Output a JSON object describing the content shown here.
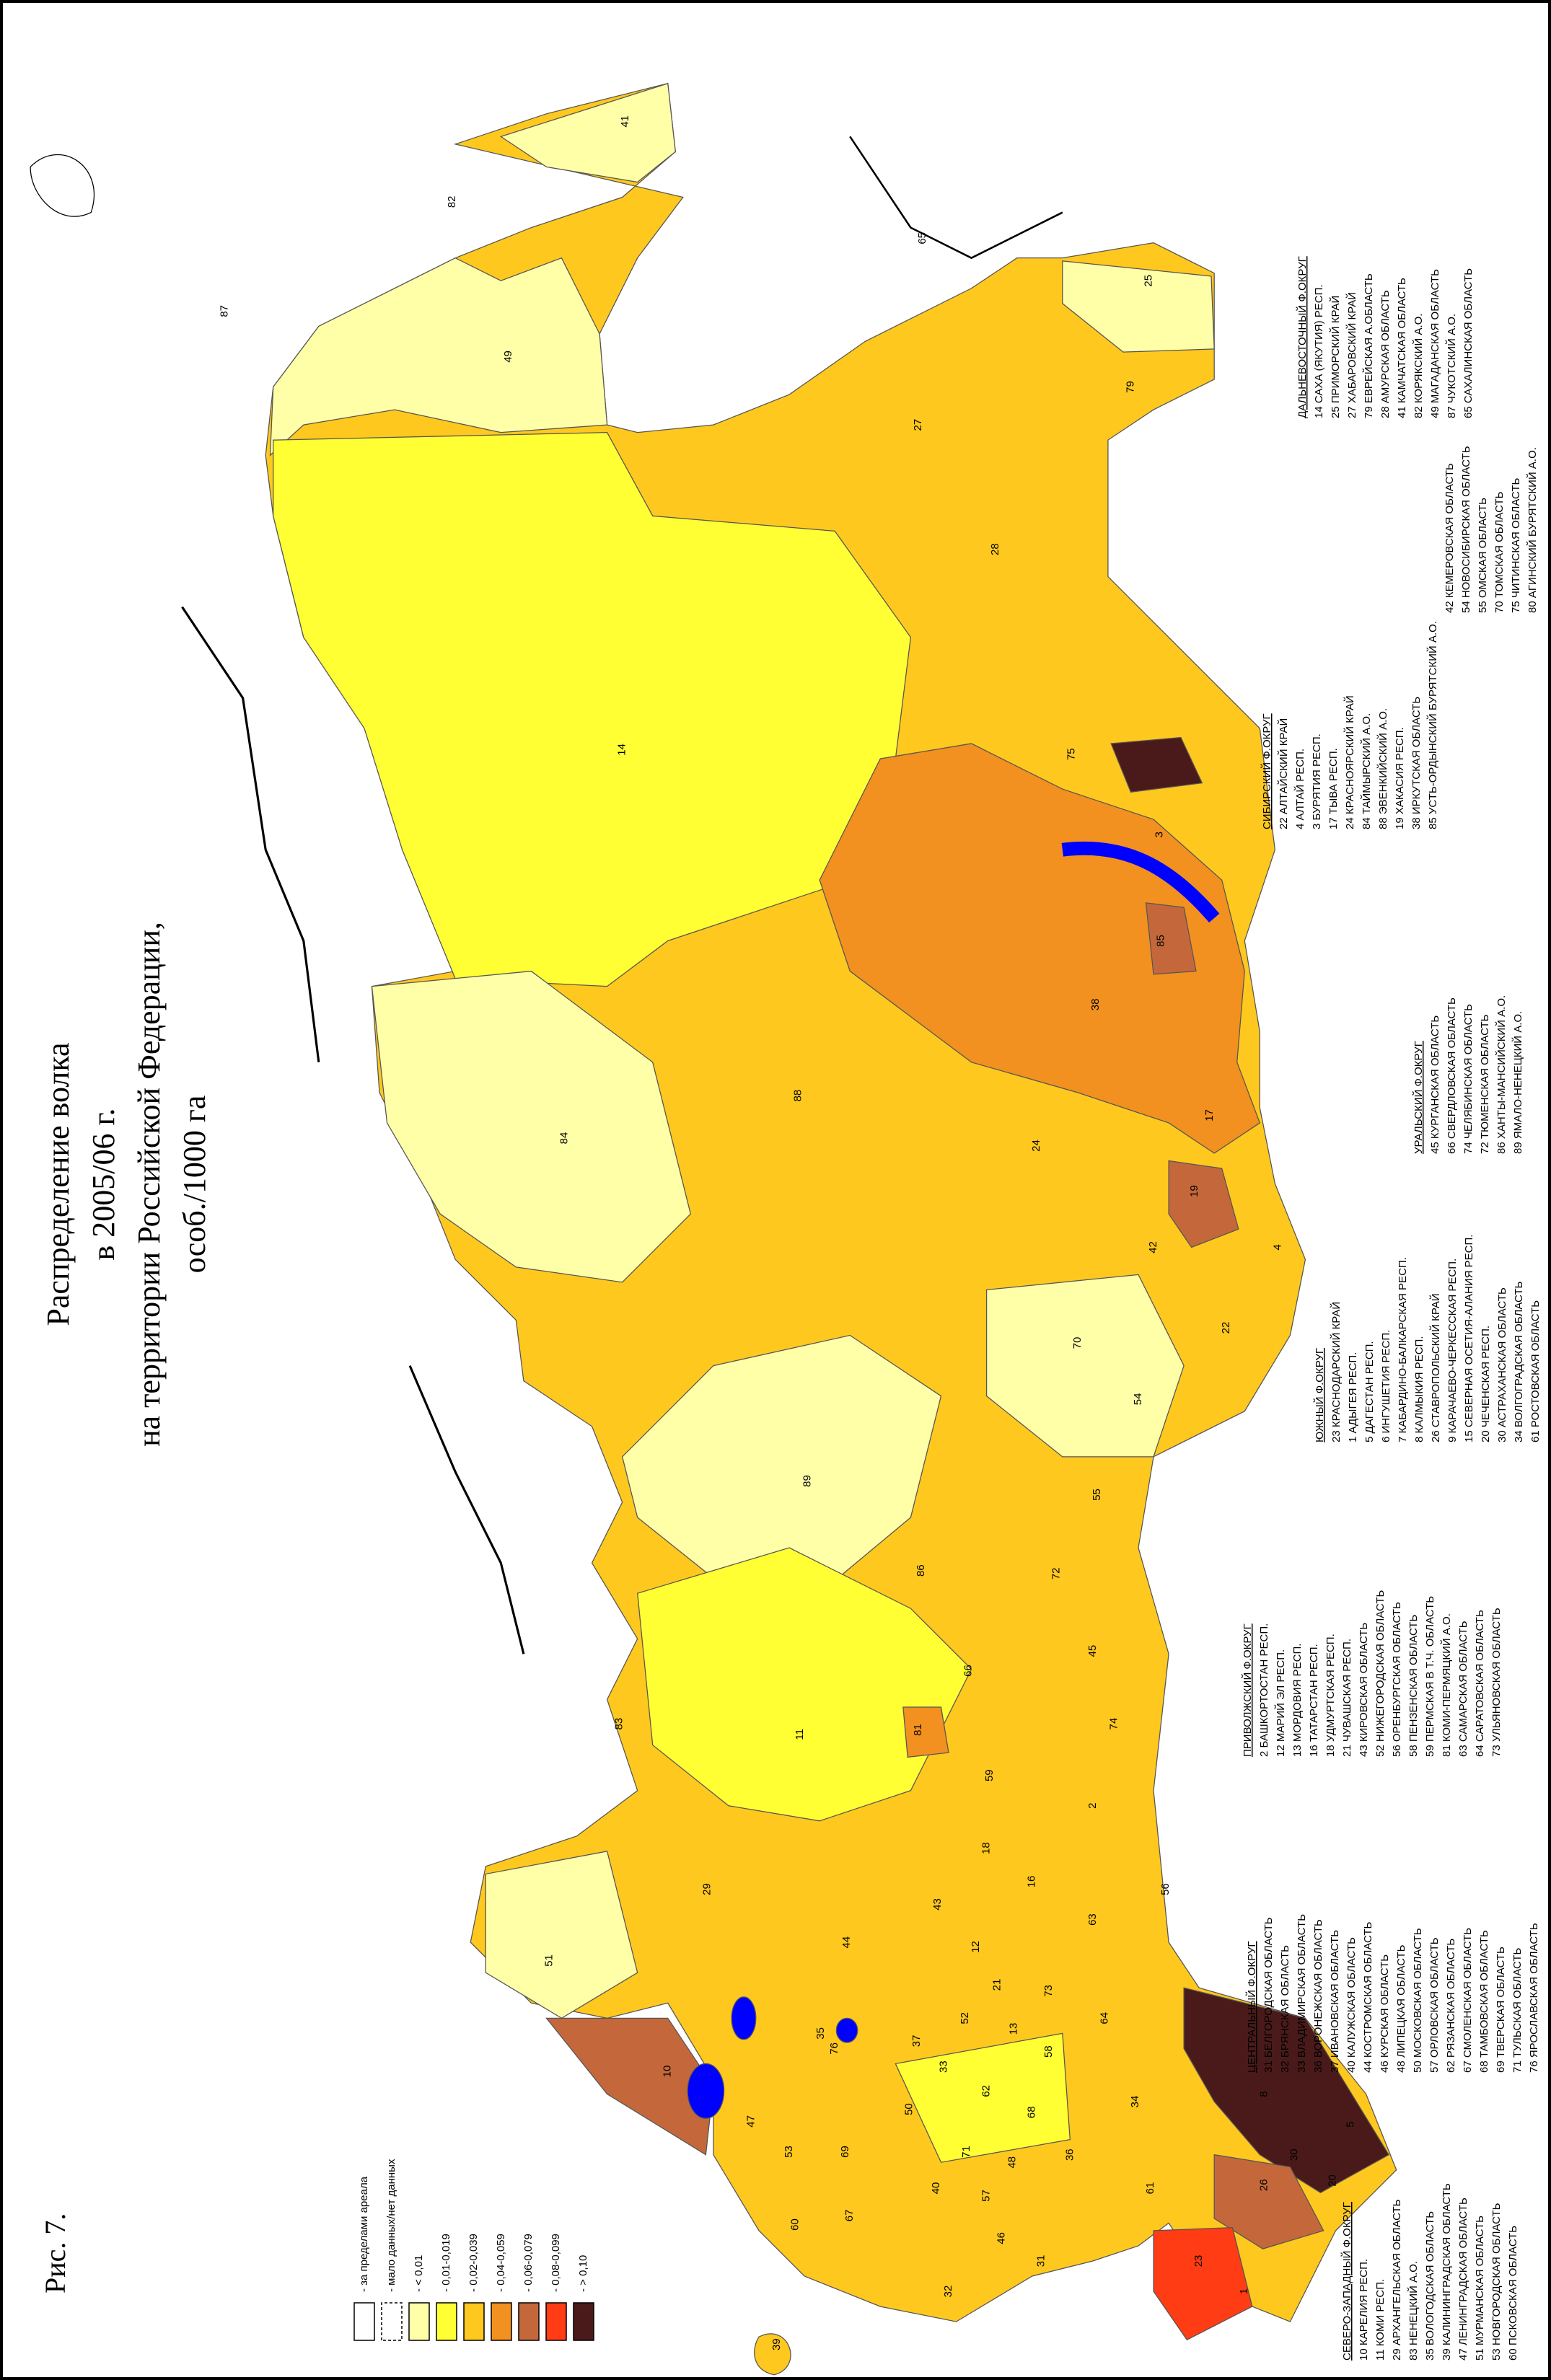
{
  "figure_label": "Рис. 7.",
  "title": [
    "Распределение  волка",
    "в 2005/06 г.",
    "на территории Российской Федерации,",
    "особ./1000 га"
  ],
  "legend": [
    {
      "label": "- за пределами ареала",
      "color": "#ffffff"
    },
    {
      "label": "- мало данных/нет данных",
      "color": "#ffffff"
    },
    {
      "label": "- < 0,01",
      "color": "#ffffa8"
    },
    {
      "label": "- 0,01-0,019",
      "color": "#ffff33"
    },
    {
      "label": "- 0,02-0,039",
      "color": "#ffc81e"
    },
    {
      "label": "- 0,04-0,059",
      "color": "#f29020"
    },
    {
      "label": "- 0,06-0,079",
      "color": "#c4683c"
    },
    {
      "label": "- 0,08-0,099",
      "color": "#ff3c14"
    },
    {
      "label": "- > 0,10",
      "color": "#4a1a1a"
    }
  ],
  "districts": [
    {
      "title": "СЕВЕРО-ЗАПАДНЫЙ Ф.ОКРУГ",
      "regions": [
        "10 КАРЕЛИЯ РЕСП.",
        "11 КОМИ РЕСП.",
        "29 АРХАНГЕЛЬСКАЯ ОБЛАСТЬ",
        "83 НЕНЕЦКИЙ А.О.",
        "35 ВОЛОГОДСКАЯ ОБЛАСТЬ",
        "39 КАЛИНИНГРАДСКАЯ ОБЛАСТЬ",
        "47 ЛЕНИНГРАДСКАЯ ОБЛАСТЬ",
        "51 МУРМАНСКАЯ ОБЛАСТЬ",
        "53 НОВГОРОДСКАЯ ОБЛАСТЬ",
        "60 ПСКОВСКАЯ ОБЛАСТЬ"
      ]
    },
    {
      "title": "ЦЕНТРАЛЬНЫЙ Ф.ОКРУГ",
      "regions": [
        "31 БЕЛГОРОДСКАЯ ОБЛАСТЬ",
        "32 БРЯНСКАЯ ОБЛАСТЬ",
        "33 ВЛАДИМИРСКАЯ ОБЛАСТЬ",
        "36 ВОРОНЕЖСКАЯ ОБЛАСТЬ",
        "37 ИВАНОВСКАЯ ОБЛАСТЬ",
        "40 КАЛУЖСКАЯ ОБЛАСТЬ",
        "44 КОСТРОМСКАЯ ОБЛАСТЬ",
        "46 КУРСКАЯ ОБЛАСТЬ",
        "48 ЛИПЕЦКАЯ ОБЛАСТЬ",
        "50 МОСКОВСКАЯ ОБЛАСТЬ",
        "57 ОРЛОВСКАЯ ОБЛАСТЬ",
        "62 РЯЗАНСКАЯ ОБЛАСТЬ",
        "67 СМОЛЕНСКАЯ ОБЛАСТЬ",
        "68 ТАМБОВСКАЯ ОБЛАСТЬ",
        "69 ТВЕРСКАЯ ОБЛАСТЬ",
        "71 ТУЛЬСКАЯ ОБЛАСТЬ",
        "76 ЯРОСЛАВСКАЯ ОБЛАСТЬ"
      ]
    },
    {
      "title": "ПРИВОЛЖСКИЙ Ф.ОКРУГ",
      "regions": [
        "2 БАШКОРТОСТАН РЕСП.",
        "12 МАРИЙ ЭЛ РЕСП.",
        "13 МОРДОВИЯ РЕСП.",
        "16 ТАТАРСТАН РЕСП.",
        "18 УДМУРТСКАЯ РЕСП.",
        "21 ЧУВАШСКАЯ РЕСП.",
        "43 КИРОВСКАЯ ОБЛАСТЬ",
        "52 НИЖЕГОРОДСКАЯ ОБЛАСТЬ",
        "56 ОРЕНБУРГСКАЯ ОБЛАСТЬ",
        "58 ПЕНЗЕНСКАЯ ОБЛАСТЬ",
        "59 ПЕРМСКАЯ В Т.Ч. ОБЛАСТЬ",
        "81 КОМИ-ПЕРМЯЦКИЙ А.О.",
        "63 САМАРСКАЯ ОБЛАСТЬ",
        "64 САРАТОВСКАЯ ОБЛАСТЬ",
        "73 УЛЬЯНОВСКАЯ ОБЛАСТЬ"
      ]
    },
    {
      "title": "ЮЖНЫЙ Ф.ОКРУГ",
      "regions": [
        "23 КРАСНОДАРСКИЙ КРАЙ",
        "1 АДЫГЕЯ РЕСП.",
        "5 ДАГЕСТАН РЕСП.",
        "6 ИНГУШЕТИЯ РЕСП.",
        "7 КАБАРДИНО-БАЛКАРСКАЯ РЕСП.",
        "8 КАЛМЫКИЯ РЕСП.",
        "26 СТАВРОПОЛЬСКИЙ КРАЙ",
        "9 КАРАЧАЕВО-ЧЕРКЕССКАЯ РЕСП.",
        "15 СЕВЕРНАЯ ОСЕТИЯ-АЛАНИЯ РЕСП.",
        "20 ЧЕЧЕНСКАЯ РЕСП.",
        "30 АСТРАХАНСКАЯ ОБЛАСТЬ",
        "34 ВОЛГОГРАДСКАЯ ОБЛАСТЬ",
        "61 РОСТОВСКАЯ ОБЛАСТЬ"
      ]
    },
    {
      "title": "УРАЛЬСКИЙ Ф.ОКРУГ",
      "regions": [
        "45 КУРГАНСКАЯ ОБЛАСТЬ",
        "66 СВЕРДЛОВСКАЯ ОБЛАСТЬ",
        "74 ЧЕЛЯБИНСКАЯ ОБЛАСТЬ",
        "72 ТЮМЕНСКАЯ ОБЛАСТЬ",
        "86 ХАНТЫ-МАНСИЙСКИЙ А.О.",
        "89 ЯМАЛО-НЕНЕЦКИЙ А.О."
      ]
    },
    {
      "title": "СИБИРСКИЙ Ф.ОКРУГ",
      "regions": [
        "22 АЛТАЙСКИЙ КРАЙ",
        "4 АЛТАЙ РЕСП.",
        "3 БУРЯТИЯ РЕСП.",
        "17 ТЫВА РЕСП.",
        "24 КРАСНОЯРСКИЙ КРАЙ",
        "84 ТАЙМЫРСКИЙ А.О.",
        "88 ЭВЕНКИЙСКИЙ А.О.",
        "19 ХАКАСИЯ РЕСП.",
        "38 ИРКУТСКАЯ ОБЛАСТЬ",
        "85 УСТЬ-ОРДЫНСКИЙ БУРЯТСКИЙ А.О.",
        "42 КЕМЕРОВСКАЯ ОБЛАСТЬ",
        "54 НОВОСИБИРСКАЯ ОБЛАСТЬ",
        "55 ОМСКАЯ ОБЛАСТЬ",
        "70 ТОМСКАЯ ОБЛАСТЬ",
        "75 ЧИТИНСКАЯ ОБЛАСТЬ",
        "80 АГИНСКИЙ БУРЯТСКИЙ А.О."
      ]
    },
    {
      "title": "ДАЛЬНЕВОСТОЧНЫЙ Ф.ОКРУГ",
      "regions": [
        "14 САХА (ЯКУТИЯ) РЕСП.",
        "25 ПРИМОРСКИЙ КРАЙ",
        "27 ХАБАРОВСКИЙ КРАЙ",
        "79 ЕВРЕЙСКАЯ А.ОБЛАСТЬ",
        "28 АМУРСКАЯ ОБЛАСТЬ",
        "41 КАМЧАТСКАЯ ОБЛАСТЬ",
        "82 КОРЯКСКИЙ А.О.",
        "49 МАГАДАНСКАЯ ОБЛАСТЬ",
        "87 ЧУКОТСКИЙ А.О.",
        "65 САХАЛИНСКАЯ ОБЛАСТЬ"
      ]
    }
  ],
  "map_labels": [
    "87",
    "49",
    "41",
    "82",
    "65",
    "25",
    "79",
    "27",
    "28",
    "14",
    "75",
    "3",
    "85",
    "38",
    "17",
    "88",
    "24",
    "19",
    "84",
    "42",
    "4",
    "22",
    "70",
    "54",
    "89",
    "55",
    "86",
    "72",
    "45",
    "66",
    "11",
    "74",
    "83",
    "81",
    "59",
    "2",
    "18",
    "16",
    "56",
    "43",
    "29",
    "63",
    "51",
    "12",
    "44",
    "21",
    "73",
    "52",
    "13",
    "35",
    "64",
    "37",
    "76",
    "58",
    "10",
    "33",
    "62",
    "50",
    "68",
    "34",
    "47",
    "53",
    "69",
    "8",
    "71",
    "48",
    "36",
    "40",
    "57",
    "30",
    "5",
    "26",
    "20",
    "61",
    "67",
    "60",
    "46",
    "31",
    "32",
    "23",
    "1",
    "39"
  ]
}
